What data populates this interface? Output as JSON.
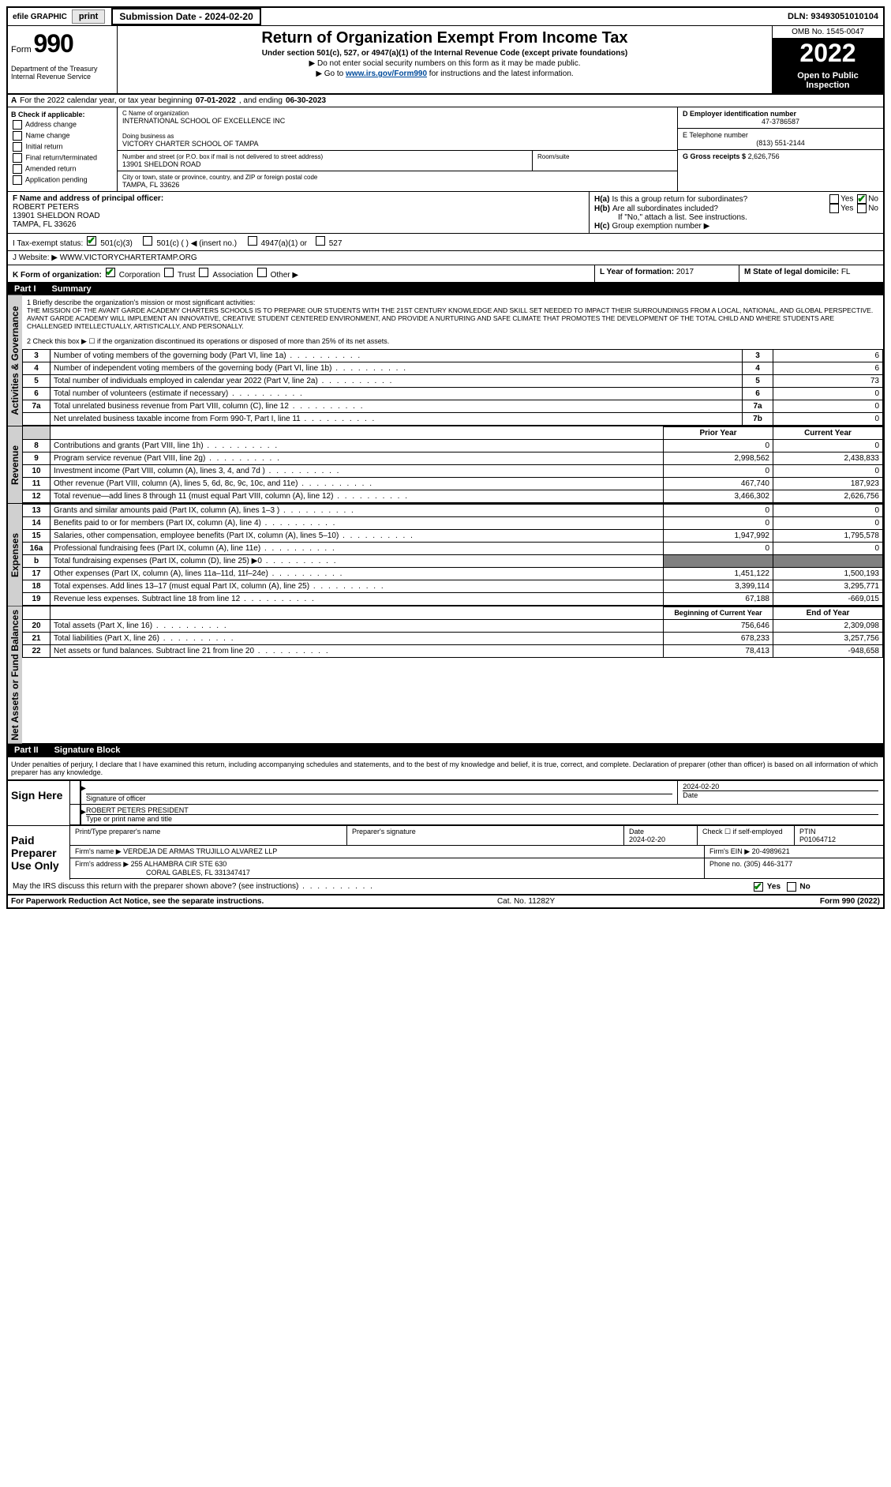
{
  "top": {
    "efile": "efile GRAPHIC",
    "print": "print",
    "submission_label": "Submission Date - ",
    "submission_date": "2024-02-20",
    "dln": "DLN: 93493051010104"
  },
  "header": {
    "form_word": "Form",
    "form_num": "990",
    "dept": "Department of the Treasury Internal Revenue Service",
    "title": "Return of Organization Exempt From Income Tax",
    "sub": "Under section 501(c), 527, or 4947(a)(1) of the Internal Revenue Code (except private foundations)",
    "nossn": "▶ Do not enter social security numbers on this form as it may be made public.",
    "goto_pre": "▶ Go to ",
    "goto_link": "www.irs.gov/Form990",
    "goto_post": " for instructions and the latest information.",
    "omb": "OMB No. 1545-0047",
    "year": "2022",
    "inspect": "Open to Public Inspection"
  },
  "lineA": {
    "a": "A",
    "text": "For the 2022 calendar year, or tax year beginning ",
    "begin": "07-01-2022",
    "mid": "   , and ending ",
    "end": "06-30-2023"
  },
  "colB": {
    "label": "B Check if applicable:",
    "addr": "Address change",
    "name": "Name change",
    "init": "Initial return",
    "final": "Final return/terminated",
    "amend": "Amended return",
    "app": "Application pending"
  },
  "colC": {
    "c_label": "C Name of organization",
    "org": "INTERNATIONAL SCHOOL OF EXCELLENCE INC",
    "dba_label": "Doing business as",
    "dba": "VICTORY CHARTER SCHOOL OF TAMPA",
    "street_label": "Number and street (or P.O. box if mail is not delivered to street address)",
    "room_label": "Room/suite",
    "street": "13901 SHELDON ROAD",
    "city_label": "City or town, state or province, country, and ZIP or foreign postal code",
    "city": "TAMPA, FL  33626"
  },
  "colD": {
    "d_label": "D Employer identification number",
    "ein": "47-3786587",
    "e_label": "E Telephone number",
    "phone": "(813) 551-2144",
    "g_label": "G Gross receipts $",
    "gross": "2,626,756"
  },
  "rowF": {
    "f_label": "F  Name and address of principal officer:",
    "name": "ROBERT PETERS",
    "addr1": "13901 SHELDON ROAD",
    "addr2": "TAMPA, FL  33626"
  },
  "rowH": {
    "ha": "H(a)",
    "ha_text": "Is this a group return for subordinates?",
    "hb": "H(b)",
    "hb_text": "Are all subordinates included?",
    "hb_note": "If \"No,\" attach a list. See instructions.",
    "hc": "H(c)",
    "hc_text": "Group exemption number ▶",
    "yes": "Yes",
    "no": "No"
  },
  "rowI": {
    "label": "I     Tax-exempt status:",
    "o1": "501(c)(3)",
    "o2": "501(c) (   ) ◀ (insert no.)",
    "o3": "4947(a)(1) or",
    "o4": "527"
  },
  "rowJ": {
    "label": "J    Website: ▶ ",
    "site": "WWW.VICTORYCHARTERTAMP.ORG"
  },
  "rowK": {
    "label": "K Form of organization:",
    "corp": "Corporation",
    "trust": "Trust",
    "assoc": "Association",
    "other": "Other ▶"
  },
  "rowL": {
    "l_label": "L Year of formation: ",
    "l_val": "2017",
    "m_label": "M State of legal domicile: ",
    "m_val": "FL"
  },
  "part1": {
    "part": "Part I",
    "title": "Summary",
    "sec_gov": "Activities & Governance",
    "sec_rev": "Revenue",
    "sec_exp": "Expenses",
    "sec_net": "Net Assets or Fund Balances",
    "line1_label": "1    Briefly describe the organization's mission or most significant activities:",
    "mission": "THE MISSION OF THE AVANT GARDE ACADEMY CHARTERS SCHOOLS IS TO PREPARE OUR STUDENTS WITH THE 21ST CENTURY KNOWLEDGE AND SKILL SET NEEDED TO IMPACT THEIR SURROUNDINGS FROM A LOCAL, NATIONAL, AND GLOBAL PERSPECTIVE. AVANT GARDE ACADEMY WILL IMPLEMENT AN INNOVATIVE, CREATIVE STUDENT CENTERED ENVIRONMENT, AND PROVIDE A NURTURING AND SAFE CLIMATE THAT PROMOTES THE DEVELOPMENT OF THE TOTAL CHILD AND WHERE STUDENTS ARE CHALLENGED INTELLECTUALLY, ARTISTICALLY, AND PERSONALLY.",
    "line2": "2    Check this box ▶ ☐ if the organization discontinued its operations or disposed of more than 25% of its net assets.",
    "rows_gov": [
      {
        "n": "3",
        "d": "Number of voting members of the governing body (Part VI, line 1a)",
        "box": "3",
        "v": "6"
      },
      {
        "n": "4",
        "d": "Number of independent voting members of the governing body (Part VI, line 1b)",
        "box": "4",
        "v": "6"
      },
      {
        "n": "5",
        "d": "Total number of individuals employed in calendar year 2022 (Part V, line 2a)",
        "box": "5",
        "v": "73"
      },
      {
        "n": "6",
        "d": "Total number of volunteers (estimate if necessary)",
        "box": "6",
        "v": "0"
      },
      {
        "n": "7a",
        "d": "Total unrelated business revenue from Part VIII, column (C), line 12",
        "box": "7a",
        "v": "0"
      },
      {
        "n": "",
        "d": "Net unrelated business taxable income from Form 990-T, Part I, line 11",
        "box": "7b",
        "v": "0"
      }
    ],
    "hdr_prior": "Prior Year",
    "hdr_curr": "Current Year",
    "rows_rev": [
      {
        "n": "8",
        "d": "Contributions and grants (Part VIII, line 1h)",
        "p": "0",
        "c": "0"
      },
      {
        "n": "9",
        "d": "Program service revenue (Part VIII, line 2g)",
        "p": "2,998,562",
        "c": "2,438,833"
      },
      {
        "n": "10",
        "d": "Investment income (Part VIII, column (A), lines 3, 4, and 7d )",
        "p": "0",
        "c": "0"
      },
      {
        "n": "11",
        "d": "Other revenue (Part VIII, column (A), lines 5, 6d, 8c, 9c, 10c, and 11e)",
        "p": "467,740",
        "c": "187,923"
      },
      {
        "n": "12",
        "d": "Total revenue—add lines 8 through 11 (must equal Part VIII, column (A), line 12)",
        "p": "3,466,302",
        "c": "2,626,756"
      }
    ],
    "rows_exp": [
      {
        "n": "13",
        "d": "Grants and similar amounts paid (Part IX, column (A), lines 1–3 )",
        "p": "0",
        "c": "0"
      },
      {
        "n": "14",
        "d": "Benefits paid to or for members (Part IX, column (A), line 4)",
        "p": "0",
        "c": "0"
      },
      {
        "n": "15",
        "d": "Salaries, other compensation, employee benefits (Part IX, column (A), lines 5–10)",
        "p": "1,947,992",
        "c": "1,795,578"
      },
      {
        "n": "16a",
        "d": "Professional fundraising fees (Part IX, column (A), line 11e)",
        "p": "0",
        "c": "0"
      },
      {
        "n": "b",
        "d": "Total fundraising expenses (Part IX, column (D), line 25) ▶0",
        "p": "",
        "c": "",
        "shaded": true
      },
      {
        "n": "17",
        "d": "Other expenses (Part IX, column (A), lines 11a–11d, 11f–24e)",
        "p": "1,451,122",
        "c": "1,500,193"
      },
      {
        "n": "18",
        "d": "Total expenses. Add lines 13–17 (must equal Part IX, column (A), line 25)",
        "p": "3,399,114",
        "c": "3,295,771"
      },
      {
        "n": "19",
        "d": "Revenue less expenses. Subtract line 18 from line 12",
        "p": "67,188",
        "c": "-669,015"
      }
    ],
    "hdr_begin": "Beginning of Current Year",
    "hdr_end": "End of Year",
    "rows_net": [
      {
        "n": "20",
        "d": "Total assets (Part X, line 16)",
        "p": "756,646",
        "c": "2,309,098"
      },
      {
        "n": "21",
        "d": "Total liabilities (Part X, line 26)",
        "p": "678,233",
        "c": "3,257,756"
      },
      {
        "n": "22",
        "d": "Net assets or fund balances. Subtract line 21 from line 20",
        "p": "78,413",
        "c": "-948,658"
      }
    ]
  },
  "part2": {
    "part": "Part II",
    "title": "Signature Block",
    "penalties": "Under penalties of perjury, I declare that I have examined this return, including accompanying schedules and statements, and to the best of my knowledge and belief, it is true, correct, and complete. Declaration of preparer (other than officer) is based on all information of which preparer has any knowledge.",
    "sign_here": "Sign Here",
    "sig_officer": "Signature of officer",
    "sig_date": "Date",
    "sig_date_val": "2024-02-20",
    "officer_name": "ROBERT PETERS  PRESIDENT",
    "type_name": "Type or print name and title",
    "paid": "Paid Preparer Use Only",
    "prep_name_label": "Print/Type preparer's name",
    "prep_sig_label": "Preparer's signature",
    "prep_date_label": "Date",
    "prep_date": "2024-02-20",
    "check_self": "Check ☐ if self-employed",
    "ptin_label": "PTIN",
    "ptin": "P01064712",
    "firm_name_label": "Firm's name     ▶",
    "firm_name": "VERDEJA DE ARMAS TRUJILLO ALVAREZ LLP",
    "firm_ein_label": "Firm's EIN ▶",
    "firm_ein": "20-4989621",
    "firm_addr_label": "Firm's address ▶",
    "firm_addr1": "255 ALHAMBRA CIR STE 630",
    "firm_addr2": "CORAL GABLES, FL  331347417",
    "phone_label": "Phone no.",
    "phone": "(305) 446-3177",
    "discuss": "May the IRS discuss this return with the preparer shown above? (see instructions)",
    "yes": "Yes",
    "no": "No"
  },
  "footer": {
    "left": "For Paperwork Reduction Act Notice, see the separate instructions.",
    "mid": "Cat. No. 11282Y",
    "right": "Form 990 (2022)"
  }
}
